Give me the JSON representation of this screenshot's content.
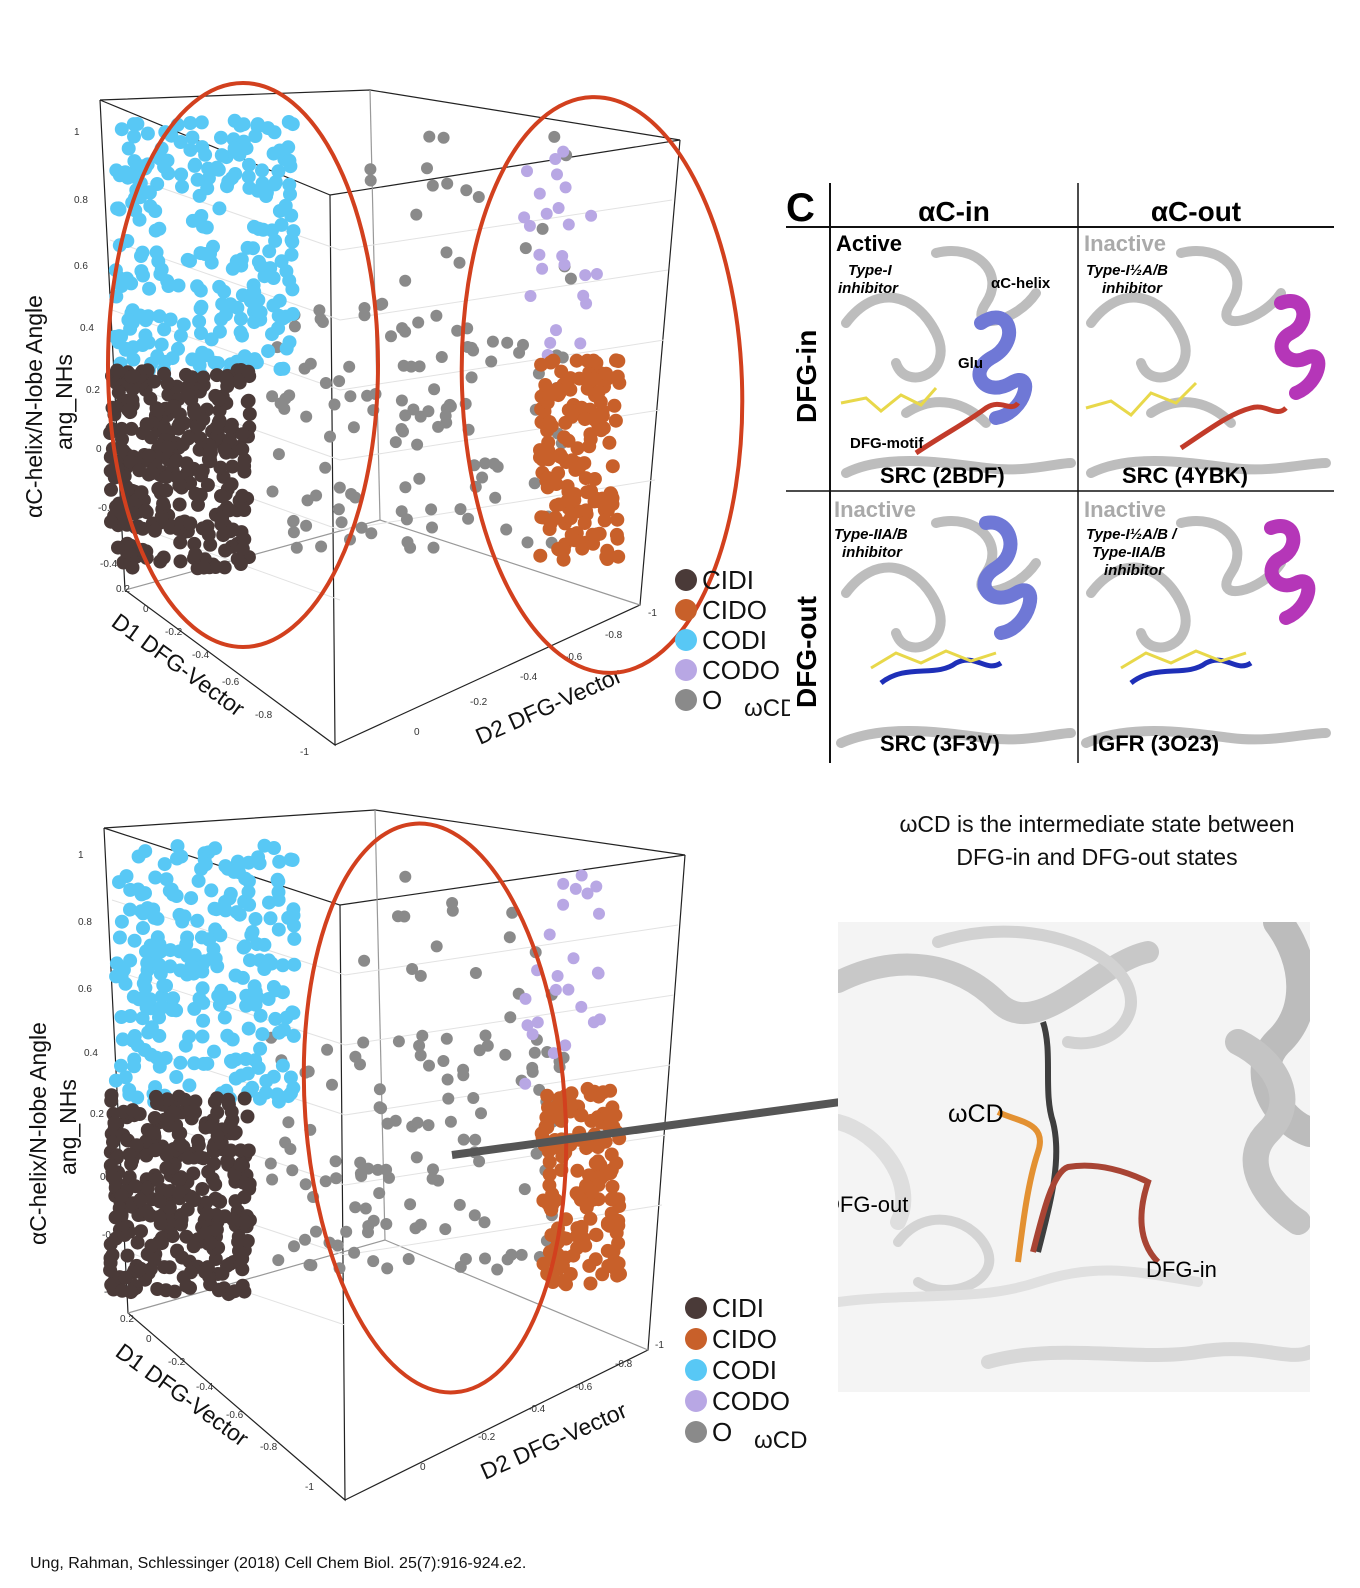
{
  "legend": {
    "items": [
      {
        "label": "CIDI",
        "color": "#4a3a38"
      },
      {
        "label": "CIDO",
        "color": "#c8602a"
      },
      {
        "label": "CODI",
        "color": "#58c8f5"
      },
      {
        "label": "CODO",
        "color": "#b8a7e4"
      },
      {
        "label": "O",
        "color": "#8a8a8a"
      }
    ],
    "omega_label": "ωCD"
  },
  "chart_data": [
    {
      "type": "scatter",
      "title": "",
      "zlabel_line1": "αC-helix/N-lobe Angle",
      "zlabel_line2": "ang_NHs",
      "xlabel": "D1 DFG-Vector",
      "ylabel": "D2 DFG-Vector",
      "z_ticks": [
        "1",
        "0.8",
        "0.6",
        "0.4",
        "0.2",
        "0",
        "-0.2",
        "-0.4"
      ],
      "x_ticks": [
        "0.2",
        "0",
        "-0.2",
        "-0.4",
        "-0.6",
        "-0.8",
        "-1"
      ],
      "y_ticks": [
        "0",
        "-0.2",
        "-0.4",
        "-0.6",
        "-0.8",
        "-1"
      ],
      "zlim": [
        -0.4,
        1
      ],
      "highlight_regions": [
        "DFG-in",
        "DFG-out"
      ],
      "series": [
        {
          "name": "CIDI",
          "color": "#4a3a38"
        },
        {
          "name": "CIDO",
          "color": "#c8602a"
        },
        {
          "name": "CODI",
          "color": "#58c8f5"
        },
        {
          "name": "CODO",
          "color": "#b8a7e4"
        },
        {
          "name": "O",
          "color": "#8a8a8a"
        }
      ]
    },
    {
      "type": "scatter",
      "title": "",
      "zlabel_line1": "αC-helix/N-lobe Angle",
      "zlabel_line2": "ang_NHs",
      "xlabel": "D1 DFG-Vector",
      "ylabel": "D2 DFG-Vector",
      "z_ticks": [
        "1",
        "0.8",
        "0.6",
        "0.4",
        "0.2",
        "0",
        "-0.2",
        "-0.4"
      ],
      "x_ticks": [
        "0.2",
        "0",
        "-0.2",
        "-0.4",
        "-0.6",
        "-0.8",
        "-1"
      ],
      "y_ticks": [
        "0",
        "-0.2",
        "-0.4",
        "-0.6",
        "-0.8",
        "-1"
      ],
      "zlim": [
        -0.4,
        1
      ],
      "highlight_regions": [
        "ωCD"
      ],
      "series": [
        {
          "name": "CIDI",
          "color": "#4a3a38"
        },
        {
          "name": "CIDO",
          "color": "#c8602a"
        },
        {
          "name": "CODI",
          "color": "#58c8f5"
        },
        {
          "name": "CODO",
          "color": "#b8a7e4"
        },
        {
          "name": "O",
          "color": "#8a8a8a"
        }
      ]
    }
  ],
  "panel_c": {
    "letter": "C",
    "col_headers": [
      "αC-in",
      "αC-out"
    ],
    "row_headers": [
      "DFG-in",
      "DFG-out"
    ],
    "cells": [
      {
        "state": "Active",
        "inhibitor_line1": "Type-I",
        "inhibitor_line2": "inhibitor",
        "code": "SRC (2BDF)",
        "helix_color": "#6f78d6",
        "gray": false
      },
      {
        "state": "Inactive",
        "inhibitor_line1": "Type-I½A/B",
        "inhibitor_line2": "inhibitor",
        "code": "SRC (4YBK)",
        "helix_color": "#b536b8",
        "gray": true
      },
      {
        "state": "Inactive",
        "inhibitor_line1": "Type-IIA/B",
        "inhibitor_line2": "inhibitor",
        "code": "SRC (3F3V)",
        "helix_color": "#6f78d6",
        "gray": true
      },
      {
        "state": "Inactive",
        "inhibitor_line1": "Type-I½A/B /",
        "inhibitor_line2": "Type-IIA/B",
        "inhibitor_line3": "inhibitor",
        "code": "IGFR (3O23)",
        "helix_color": "#b536b8",
        "gray": true
      }
    ],
    "annotations": {
      "helix": "αC-helix",
      "glu": "Glu",
      "dfg_motif": "DFG-motif"
    }
  },
  "caption": {
    "line1": "ωCD is the intermediate state between",
    "line2": "DFG-in and DFG-out states"
  },
  "structure_labels": {
    "omega": "ωCD",
    "dfg_out": "DFG-out",
    "dfg_in": "DFG-in"
  },
  "citation": "Ung, Rahman, Schlessinger (2018) Cell Chem Biol. 25(7):916-924.e2."
}
